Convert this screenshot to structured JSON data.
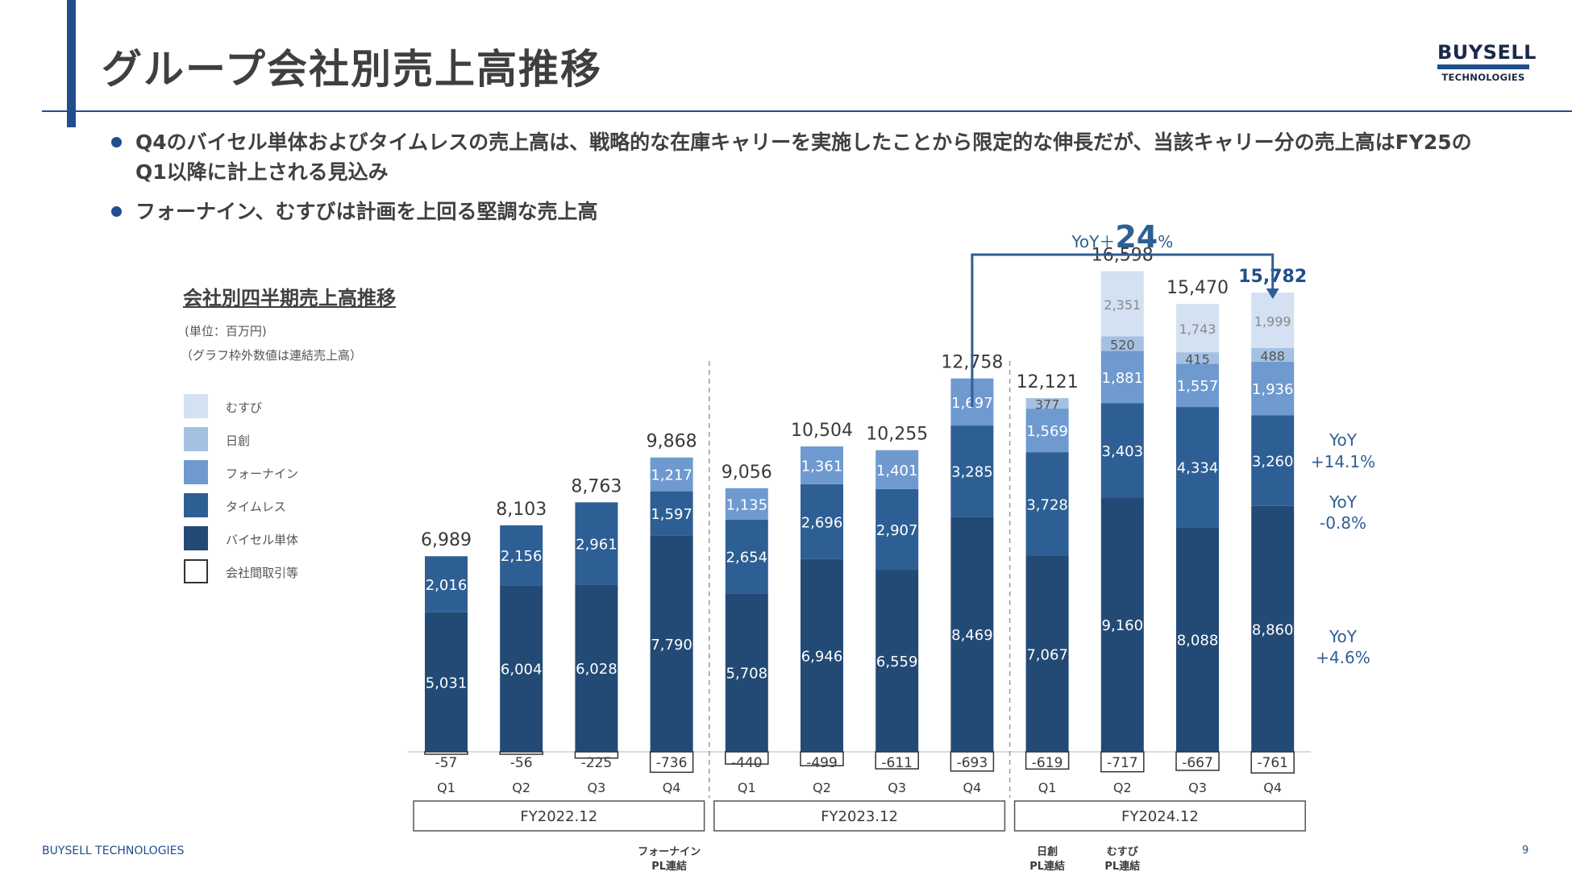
{
  "page": {
    "title": "グループ会社別売上高推移",
    "logo_top": "BUYSELL",
    "logo_bottom": "TECHNOLOGIES",
    "bullets": [
      "Q4のバイセル単体およびタイムレスの売上高は、戦略的な在庫キャリーを実施したことから限定的な伸長だが、当該キャリー分の売上高はFY25のQ1以降に計上される見込み",
      "フォーナイン、むすびは計画を上回る堅調な売上高"
    ],
    "footer_brand": "BUYSELL  TECHNOLOGIES",
    "page_number": "9"
  },
  "chart_data": {
    "type": "bar",
    "stacked": true,
    "title": "会社別四半期売上高推移",
    "unit_note": "(単位：百万円)",
    "scope_note": "（グラフ枠外数値は連結売上高）",
    "categories": [
      "Q1",
      "Q2",
      "Q3",
      "Q4",
      "Q1",
      "Q2",
      "Q3",
      "Q4",
      "Q1",
      "Q2",
      "Q3",
      "Q4"
    ],
    "fiscal_years": [
      {
        "label": "FY2022.12",
        "quarters": 4
      },
      {
        "label": "FY2023.12",
        "quarters": 4
      },
      {
        "label": "FY2024.12",
        "quarters": 4
      }
    ],
    "series": [
      {
        "name": "バイセル単体",
        "color": "#234a75",
        "values": [
          5031,
          6004,
          6028,
          7790,
          5708,
          6946,
          6559,
          8469,
          7067,
          9160,
          8088,
          8860
        ]
      },
      {
        "name": "タイムレス",
        "color": "#2e5f94",
        "values": [
          2016,
          2156,
          2961,
          1597,
          2654,
          2696,
          2907,
          3285,
          3728,
          3403,
          4334,
          3260
        ]
      },
      {
        "name": "フォーナイン",
        "color": "#6f9ad0",
        "values": [
          null,
          null,
          null,
          1217,
          1135,
          1361,
          1401,
          1697,
          1569,
          1881,
          1557,
          1936
        ]
      },
      {
        "name": "日創",
        "color": "#a4c1e3",
        "values": [
          null,
          null,
          null,
          null,
          null,
          null,
          null,
          null,
          377,
          520,
          415,
          488
        ]
      },
      {
        "name": "むすび",
        "color": "#d3e1f2",
        "values": [
          null,
          null,
          null,
          null,
          null,
          null,
          null,
          null,
          null,
          2351,
          1743,
          1999
        ]
      },
      {
        "name": "会社間取引等",
        "color": "#ffffff",
        "values": [
          -57,
          -56,
          -225,
          -736,
          -440,
          -499,
          -611,
          -693,
          -619,
          -717,
          -667,
          -761
        ]
      }
    ],
    "totals": [
      6989,
      8103,
      8763,
      9868,
      9056,
      10504,
      10255,
      12758,
      12121,
      16598,
      15470,
      15782
    ],
    "totals_display": [
      "6,989",
      "8,103",
      "8,763",
      "9,868",
      "9,056",
      "10,504",
      "10,255",
      "12,758",
      "12,121",
      "16,598",
      "15,470",
      "15,782"
    ],
    "highlight_total_index": 11,
    "yoy_callout": {
      "prefix": "YoY＋",
      "value": "24",
      "suffix": "%",
      "from_index": 7,
      "to_index": 11
    },
    "segment_yoy": [
      {
        "label": "YoY",
        "value": "+14.1%"
      },
      {
        "label": "YoY",
        "value": "-0.8%"
      },
      {
        "label": "YoY",
        "value": "+4.6%"
      }
    ],
    "consolidation_notes": [
      {
        "label": "フォーナイン\nPL連結",
        "at_index": 3
      },
      {
        "label": "日創\nPL連結",
        "at_index": 8
      },
      {
        "label": "むすび\nPL連結",
        "at_index": 9
      }
    ],
    "ylim": [
      -800,
      17000
    ]
  }
}
